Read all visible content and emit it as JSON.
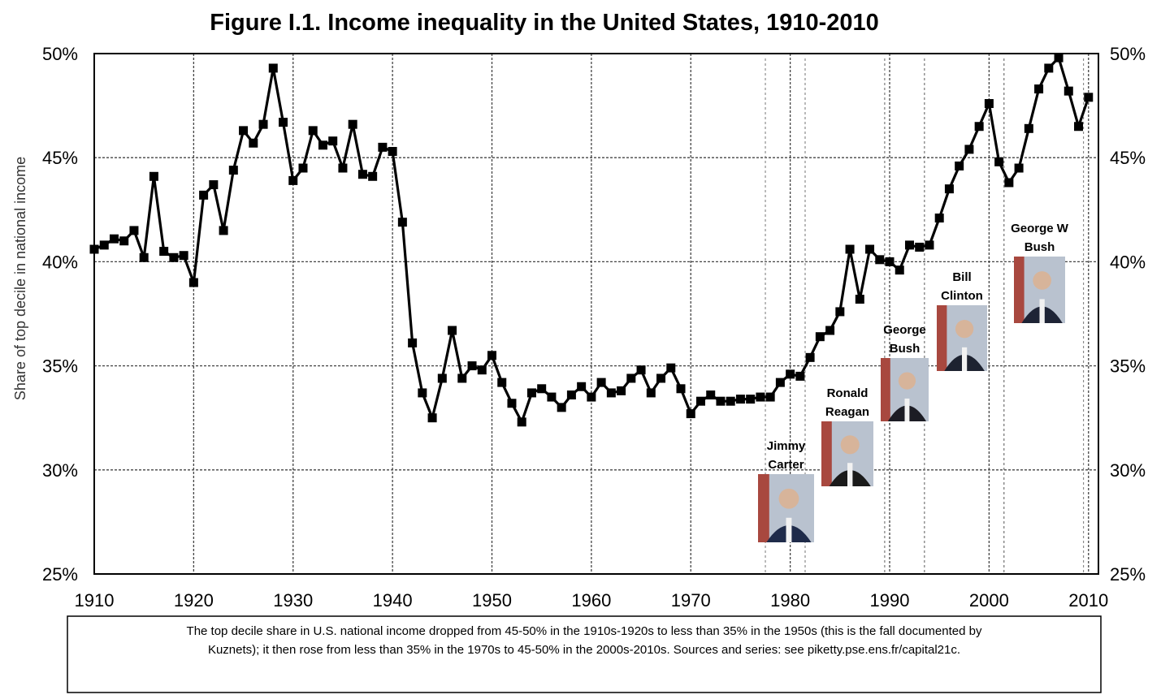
{
  "chart_data": {
    "type": "line",
    "title": "Figure I.1. Income inequality in the United States, 1910-2010",
    "ylabel": "Share of top decile in national income",
    "xlim": [
      1910,
      2011
    ],
    "ylim": [
      0.25,
      0.5
    ],
    "x_ticks": [
      1910,
      1920,
      1930,
      1940,
      1950,
      1960,
      1970,
      1980,
      1990,
      2000,
      2010
    ],
    "x_tick_labels": [
      "1910",
      "1920",
      "1930",
      "1940",
      "1950",
      "1960",
      "1970",
      "1980",
      "1990",
      "2000",
      "2010"
    ],
    "y_ticks": [
      0.25,
      0.3,
      0.35,
      0.4,
      0.45,
      0.5
    ],
    "y_tick_labels": [
      "25%",
      "30%",
      "35%",
      "40%",
      "45%",
      "50%"
    ],
    "grid": true,
    "marker": "square",
    "line_color": "#000000",
    "series": [
      {
        "x": [
          1910,
          1911,
          1912,
          1913,
          1914,
          1915,
          1916,
          1917,
          1918,
          1919,
          1920,
          1921,
          1922,
          1923,
          1924,
          1925,
          1926,
          1927,
          1928,
          1929,
          1930,
          1931,
          1932,
          1933,
          1934,
          1935,
          1936,
          1937,
          1938,
          1939,
          1940,
          1941,
          1942,
          1943,
          1944,
          1945,
          1946,
          1947,
          1948,
          1949,
          1950,
          1951,
          1952,
          1953,
          1954,
          1955,
          1956,
          1957,
          1958,
          1959,
          1960,
          1961,
          1962,
          1963,
          1964,
          1965,
          1966,
          1967,
          1968,
          1969,
          1970,
          1971,
          1972,
          1973,
          1974,
          1975,
          1976,
          1977,
          1978,
          1979,
          1980,
          1981,
          1982,
          1983,
          1984,
          1985,
          1986,
          1987,
          1988,
          1989,
          1990,
          1991,
          1992,
          1993,
          1994,
          1995,
          1996,
          1997,
          1998,
          1999,
          2000,
          2001,
          2002,
          2003,
          2004,
          2005,
          2006,
          2007,
          2008,
          2009,
          2010
        ],
        "values": [
          0.406,
          0.408,
          0.411,
          0.41,
          0.415,
          0.402,
          0.441,
          0.405,
          0.402,
          0.403,
          0.39,
          0.432,
          0.437,
          0.415,
          0.444,
          0.463,
          0.457,
          0.466,
          0.493,
          0.467,
          0.439,
          0.445,
          0.463,
          0.456,
          0.458,
          0.445,
          0.466,
          0.442,
          0.441,
          0.455,
          0.453,
          0.419,
          0.361,
          0.337,
          0.325,
          0.344,
          0.367,
          0.344,
          0.35,
          0.348,
          0.355,
          0.342,
          0.332,
          0.323,
          0.337,
          0.339,
          0.335,
          0.33,
          0.336,
          0.34,
          0.335,
          0.342,
          0.337,
          0.338,
          0.344,
          0.348,
          0.337,
          0.344,
          0.349,
          0.339,
          0.327,
          0.333,
          0.336,
          0.333,
          0.333,
          0.334,
          0.334,
          0.335,
          0.335,
          0.342,
          0.346,
          0.345,
          0.354,
          0.364,
          0.367,
          0.376,
          0.406,
          0.382,
          0.406,
          0.401,
          0.4,
          0.396,
          0.408,
          0.407,
          0.408,
          0.421,
          0.435,
          0.446,
          0.454,
          0.465,
          0.476,
          0.448,
          0.438,
          0.445,
          0.464,
          0.483,
          0.493,
          0.498,
          0.482,
          0.465,
          0.479
        ]
      }
    ],
    "annotations": [
      {
        "name": "carter",
        "label": [
          "Jimmy",
          "Carter"
        ],
        "term": [
          1977.5,
          1981.5
        ],
        "suit": "#1f2b4a"
      },
      {
        "name": "reagan",
        "label": [
          "Ronald",
          "Reagan"
        ],
        "term": [
          1981.5,
          1989.5
        ],
        "suit": "#1a1a1a"
      },
      {
        "name": "bush",
        "label": [
          "George",
          "Bush"
        ],
        "term": [
          1989.5,
          1993.5
        ],
        "suit": "#1c1c24"
      },
      {
        "name": "clinton",
        "label": [
          "Bill",
          "Clinton"
        ],
        "term": [
          1993.5,
          2001.5
        ],
        "suit": "#1d2230"
      },
      {
        "name": "gwbush",
        "label": [
          "George W",
          "Bush"
        ],
        "term": [
          2001.5,
          2009.5
        ],
        "suit": "#1e2436"
      }
    ],
    "caption": "The top decile share in U.S. national income dropped from 45-50% in the 1910s-1920s to less than 35% in the 1950s (this is the fall documented by Kuznets); it then rose from less than 35% in the 1970s to 45-50% in the 2000s-2010s. Sources and series: see piketty.pse.ens.fr/capital21c.",
    "caption_lines": [
      "The top decile share in U.S. national income dropped from 45-50% in the 1910s-1920s to less than 35% in the 1950s (this is the fall documented by",
      "Kuznets); it then rose from less than 35% in the 1970s to 45-50% in the 2000s-2010s. Sources and series: see piketty.pse.ens.fr/capital21c."
    ]
  }
}
